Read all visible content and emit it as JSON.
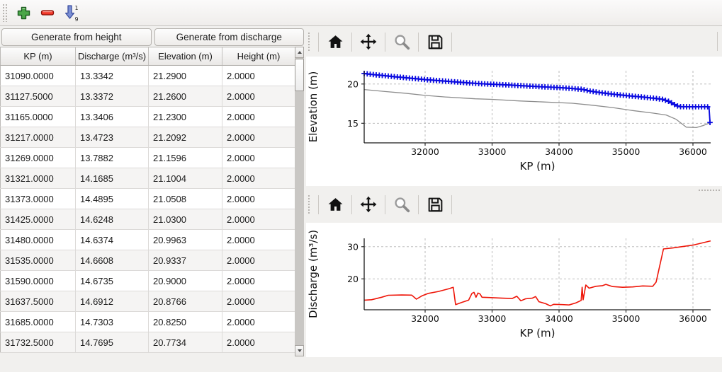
{
  "main_toolbar": {
    "icons": [
      "add-icon",
      "remove-icon",
      "sort-ascending-1-9-icon"
    ],
    "drag_handle": "toolbar-grip"
  },
  "left_panel": {
    "buttons": [
      {
        "label": "Generate from height"
      },
      {
        "label": "Generate from discharge"
      }
    ],
    "table": {
      "columns": [
        "KP (m)",
        "Discharge (m³/s)",
        "Elevation (m)",
        "Height (m)"
      ],
      "rows": [
        [
          "31090.0000",
          "13.3342",
          "21.2900",
          "2.0000"
        ],
        [
          "31127.5000",
          "13.3372",
          "21.2600",
          "2.0000"
        ],
        [
          "31165.0000",
          "13.3406",
          "21.2300",
          "2.0000"
        ],
        [
          "31217.0000",
          "13.4723",
          "21.2092",
          "2.0000"
        ],
        [
          "31269.0000",
          "13.7882",
          "21.1596",
          "2.0000"
        ],
        [
          "31321.0000",
          "14.1685",
          "21.1004",
          "2.0000"
        ],
        [
          "31373.0000",
          "14.4895",
          "21.0508",
          "2.0000"
        ],
        [
          "31425.0000",
          "14.6248",
          "21.0300",
          "2.0000"
        ],
        [
          "31480.0000",
          "14.6374",
          "20.9963",
          "2.0000"
        ],
        [
          "31535.0000",
          "14.6608",
          "20.9337",
          "2.0000"
        ],
        [
          "31590.0000",
          "14.6735",
          "20.9000",
          "2.0000"
        ],
        [
          "31637.5000",
          "14.6912",
          "20.8766",
          "2.0000"
        ],
        [
          "31685.0000",
          "14.7303",
          "20.8250",
          "2.0000"
        ],
        [
          "31732.5000",
          "14.7695",
          "20.7734",
          "2.0000"
        ]
      ]
    },
    "scrollbar": {
      "icons": [
        "scroll-up-icon",
        "scroll-down-icon"
      ]
    }
  },
  "chart_toolbar_icons": [
    "home-icon",
    "pan-icon",
    "zoom-icon",
    "save-icon"
  ],
  "colors": {
    "elevation_line": "#0a0ae0",
    "bed_line": "#8c8c8c",
    "discharge_line": "#ee1508",
    "grid": "#b4b4b4",
    "spine": "#1a1a1a"
  },
  "chart_data": [
    {
      "type": "line",
      "title": "",
      "xlabel": "KP (m)",
      "ylabel": "Elevation (m)",
      "xlim": [
        31090,
        36265
      ],
      "ylim": [
        12.5,
        21.7
      ],
      "xticks": [
        32000,
        33000,
        34000,
        35000,
        36000
      ],
      "yticks": [
        15,
        20
      ],
      "grid": true,
      "legend": "none",
      "series": [
        {
          "name": "bed-elevation",
          "color": "#8c8c8c",
          "width": 1.3,
          "marker": "none",
          "points": [
            [
              31090,
              19.3
            ],
            [
              31400,
              19.05
            ],
            [
              31700,
              18.83
            ],
            [
              32000,
              18.55
            ],
            [
              32300,
              18.35
            ],
            [
              32600,
              18.2
            ],
            [
              32750,
              18.12
            ],
            [
              33000,
              18.05
            ],
            [
              33400,
              17.85
            ],
            [
              33800,
              17.7
            ],
            [
              34200,
              17.55
            ],
            [
              34500,
              17.3
            ],
            [
              34800,
              17.0
            ],
            [
              35100,
              16.62
            ],
            [
              35400,
              16.3
            ],
            [
              35600,
              16.05
            ],
            [
              35750,
              15.5
            ],
            [
              35900,
              14.5
            ],
            [
              36050,
              14.45
            ],
            [
              36150,
              14.7
            ],
            [
              36255,
              15.05
            ]
          ]
        },
        {
          "name": "water-elevation",
          "color": "#0a0ae0",
          "width": 1.9,
          "marker": "plus",
          "marker_step": 45,
          "points": [
            [
              31090,
              21.35
            ],
            [
              31200,
              21.23
            ],
            [
              31400,
              21.06
            ],
            [
              31600,
              20.89
            ],
            [
              31800,
              20.73
            ],
            [
              32000,
              20.57
            ],
            [
              32200,
              20.44
            ],
            [
              32400,
              20.31
            ],
            [
              32600,
              20.18
            ],
            [
              32800,
              20.06
            ],
            [
              33000,
              19.98
            ],
            [
              33200,
              19.9
            ],
            [
              33400,
              19.81
            ],
            [
              33600,
              19.72
            ],
            [
              33800,
              19.63
            ],
            [
              34000,
              19.55
            ],
            [
              34200,
              19.43
            ],
            [
              34350,
              19.32
            ],
            [
              34450,
              19.12
            ],
            [
              34600,
              18.93
            ],
            [
              34800,
              18.71
            ],
            [
              35000,
              18.53
            ],
            [
              35200,
              18.38
            ],
            [
              35400,
              18.21
            ],
            [
              35550,
              18.05
            ],
            [
              35650,
              17.76
            ],
            [
              35750,
              17.26
            ],
            [
              35800,
              17.12
            ],
            [
              36000,
              17.1
            ],
            [
              36240,
              17.1
            ],
            [
              36255,
              15.1
            ]
          ]
        }
      ]
    },
    {
      "type": "line",
      "title": "",
      "xlabel": "KP (m)",
      "ylabel": "Discharge (m³/s)",
      "xlim": [
        31090,
        36265
      ],
      "ylim": [
        10.4,
        32.6
      ],
      "xticks": [
        32000,
        33000,
        34000,
        35000,
        36000
      ],
      "yticks": [
        20,
        30
      ],
      "grid": true,
      "legend": "none",
      "series": [
        {
          "name": "discharge",
          "color": "#ee1508",
          "width": 1.6,
          "marker": "none",
          "points": [
            [
              31090,
              13.4
            ],
            [
              31200,
              13.52
            ],
            [
              31350,
              14.3
            ],
            [
              31450,
              14.9
            ],
            [
              31650,
              15.0
            ],
            [
              31800,
              14.95
            ],
            [
              31870,
              13.7
            ],
            [
              31950,
              14.7
            ],
            [
              32050,
              15.5
            ],
            [
              32200,
              16.1
            ],
            [
              32350,
              16.9
            ],
            [
              32420,
              17.4
            ],
            [
              32455,
              12.0
            ],
            [
              32550,
              12.7
            ],
            [
              32650,
              13.4
            ],
            [
              32700,
              15.5
            ],
            [
              32730,
              15.8
            ],
            [
              32760,
              14.3
            ],
            [
              32790,
              15.6
            ],
            [
              32820,
              15.3
            ],
            [
              32850,
              14.3
            ],
            [
              32950,
              14.2
            ],
            [
              33150,
              14.0
            ],
            [
              33300,
              13.9
            ],
            [
              33370,
              14.6
            ],
            [
              33430,
              13.2
            ],
            [
              33500,
              13.8
            ],
            [
              33600,
              14.0
            ],
            [
              33650,
              14.5
            ],
            [
              33700,
              12.9
            ],
            [
              33800,
              12.3
            ],
            [
              33870,
              11.6
            ],
            [
              33920,
              12.1
            ],
            [
              34050,
              12.0
            ],
            [
              34150,
              11.9
            ],
            [
              34250,
              12.5
            ],
            [
              34330,
              13.3
            ],
            [
              34345,
              17.4
            ],
            [
              34360,
              13.5
            ],
            [
              34400,
              18.1
            ],
            [
              34450,
              17.1
            ],
            [
              34550,
              17.7
            ],
            [
              34650,
              17.9
            ],
            [
              34700,
              18.3
            ],
            [
              34800,
              17.6
            ],
            [
              34950,
              17.4
            ],
            [
              35100,
              17.5
            ],
            [
              35250,
              17.8
            ],
            [
              35400,
              17.7
            ],
            [
              35450,
              19.0
            ],
            [
              35560,
              29.3
            ],
            [
              35700,
              29.6
            ],
            [
              36000,
              30.5
            ],
            [
              36265,
              31.8
            ]
          ]
        }
      ]
    }
  ]
}
